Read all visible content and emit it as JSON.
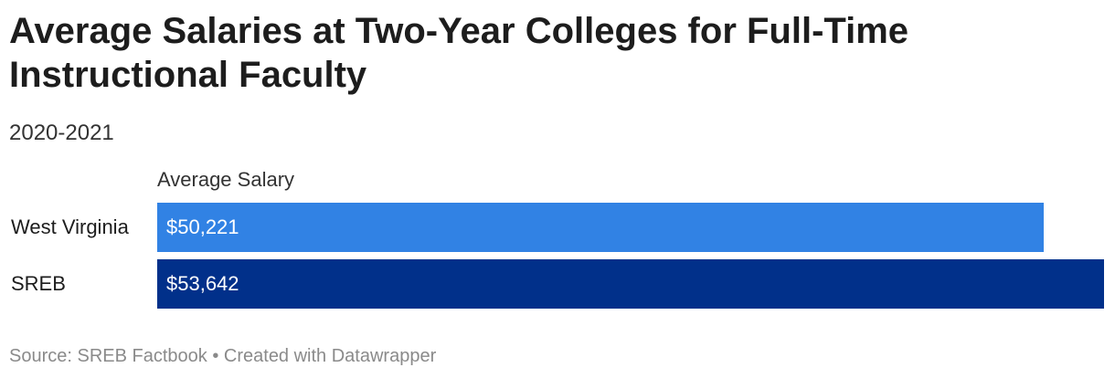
{
  "title": "Average Salaries at Two-Year Colleges for Full-Time Instructional Faculty",
  "subtitle": "2020-2021",
  "footer": {
    "source_label": "Source: ",
    "source": "SREB Factbook",
    "separator": " • ",
    "credit": "Created with Datawrapper"
  },
  "chart_data": {
    "type": "bar",
    "orientation": "horizontal",
    "column_header": "Average Salary",
    "categories": [
      "West Virginia",
      "SREB"
    ],
    "values": [
      50221,
      53642
    ],
    "value_labels": [
      "$50,221",
      "$53,642"
    ],
    "colors": [
      "#3182e4",
      "#01308a"
    ],
    "xlim": [
      0,
      53642
    ],
    "grid": false,
    "legend": "none"
  }
}
